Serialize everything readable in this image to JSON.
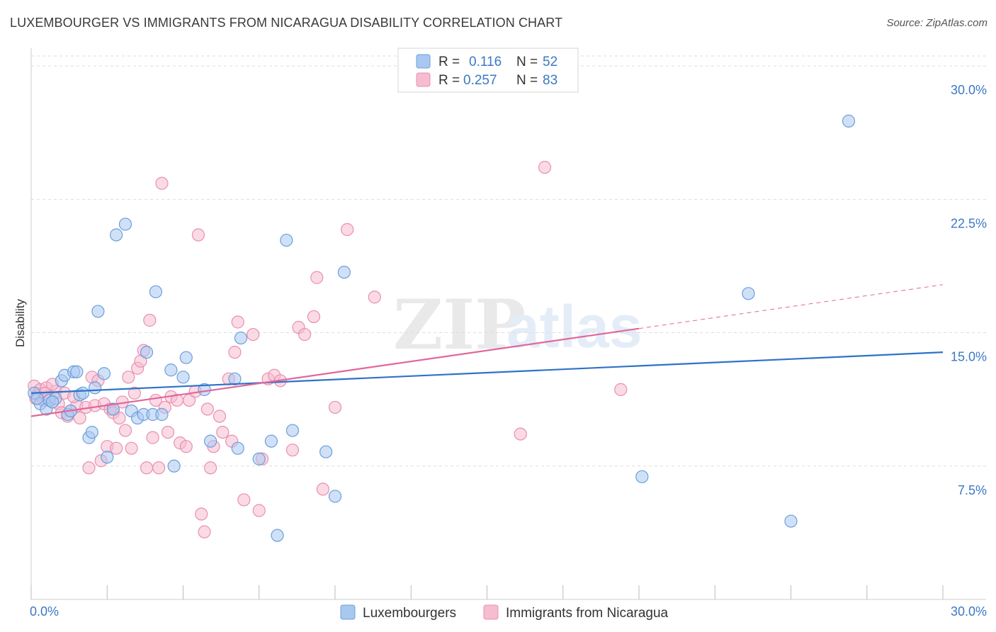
{
  "title": "LUXEMBOURGER VS IMMIGRANTS FROM NICARAGUA DISABILITY CORRELATION CHART",
  "source": "Source: ZipAtlas.com",
  "watermark": {
    "zip": "ZIP",
    "atlas": "atlas"
  },
  "colors": {
    "blue_fill": "#a9c8f0",
    "blue_stroke": "#6a9fdc",
    "blue_line": "#2f72c9",
    "pink_fill": "#f6bcd0",
    "pink_stroke": "#e98fb0",
    "pink_line": "#e0679a",
    "tick_text": "#3b78c4",
    "grid": "#dddddd"
  },
  "legend": {
    "r_label": "R =",
    "n_label": "N =",
    "blue": {
      "r": "0.116",
      "n": "52"
    },
    "pink": {
      "r": "0.257",
      "n": "83"
    }
  },
  "chart_data": {
    "type": "scatter",
    "xlabel": "",
    "ylabel": "Disability",
    "xlim": [
      0,
      30
    ],
    "ylim": [
      0,
      31
    ],
    "x_tick_labels": {
      "left": "0.0%",
      "right": "30.0%"
    },
    "y_ticks": [
      {
        "value": 7.5,
        "label": "7.5%"
      },
      {
        "value": 15.0,
        "label": "15.0%"
      },
      {
        "value": 22.5,
        "label": "22.5%"
      },
      {
        "value": 30.0,
        "label": "30.0%"
      }
    ],
    "series": [
      {
        "name": "Luxembourgers",
        "color": "blue",
        "trend": {
          "x0": 0,
          "y0": 11.6,
          "x1": 30,
          "y1": 13.9,
          "dash_from": null
        },
        "points": [
          [
            0.1,
            11.6
          ],
          [
            0.3,
            11.0
          ],
          [
            0.5,
            10.7
          ],
          [
            0.6,
            11.2
          ],
          [
            0.8,
            11.3
          ],
          [
            1.0,
            12.3
          ],
          [
            1.2,
            10.4
          ],
          [
            1.1,
            12.6
          ],
          [
            1.4,
            12.8
          ],
          [
            1.5,
            12.8
          ],
          [
            1.6,
            11.5
          ],
          [
            1.7,
            11.6
          ],
          [
            1.9,
            9.1
          ],
          [
            2.0,
            9.4
          ],
          [
            2.1,
            11.9
          ],
          [
            2.2,
            16.2
          ],
          [
            2.4,
            12.7
          ],
          [
            2.5,
            8.0
          ],
          [
            2.7,
            10.7
          ],
          [
            2.8,
            20.5
          ],
          [
            3.1,
            21.1
          ],
          [
            3.3,
            10.6
          ],
          [
            3.5,
            10.2
          ],
          [
            3.7,
            10.4
          ],
          [
            3.8,
            13.9
          ],
          [
            4.0,
            10.4
          ],
          [
            4.1,
            17.3
          ],
          [
            4.3,
            10.4
          ],
          [
            4.6,
            12.9
          ],
          [
            4.7,
            7.5
          ],
          [
            5.0,
            12.5
          ],
          [
            5.1,
            13.6
          ],
          [
            5.7,
            11.8
          ],
          [
            5.9,
            8.9
          ],
          [
            6.8,
            8.5
          ],
          [
            6.7,
            12.4
          ],
          [
            6.9,
            14.7
          ],
          [
            7.5,
            7.9
          ],
          [
            7.9,
            8.9
          ],
          [
            8.1,
            3.6
          ],
          [
            8.4,
            20.2
          ],
          [
            8.6,
            9.5
          ],
          [
            9.7,
            8.3
          ],
          [
            10.0,
            5.8
          ],
          [
            10.3,
            18.4
          ],
          [
            20.1,
            6.9
          ],
          [
            23.6,
            17.2
          ],
          [
            25.0,
            4.4
          ],
          [
            26.9,
            26.9
          ],
          [
            0.2,
            11.3
          ],
          [
            0.7,
            11.1
          ],
          [
            1.3,
            10.6
          ]
        ]
      },
      {
        "name": "Immigrants from Nicaragua",
        "color": "pink",
        "trend": {
          "x0": 0,
          "y0": 10.3,
          "x1": 30,
          "y1": 17.7,
          "dash_from": 20.0
        },
        "points": [
          [
            0.1,
            12.0
          ],
          [
            0.2,
            11.5
          ],
          [
            0.3,
            11.8
          ],
          [
            0.4,
            11.2
          ],
          [
            0.5,
            11.9
          ],
          [
            0.6,
            11.4
          ],
          [
            0.8,
            11.7
          ],
          [
            0.9,
            11.0
          ],
          [
            1.0,
            10.5
          ],
          [
            1.1,
            11.6
          ],
          [
            1.2,
            10.3
          ],
          [
            1.3,
            10.6
          ],
          [
            1.5,
            10.9
          ],
          [
            1.6,
            10.2
          ],
          [
            1.8,
            10.8
          ],
          [
            1.9,
            7.4
          ],
          [
            2.0,
            12.5
          ],
          [
            2.1,
            10.9
          ],
          [
            2.2,
            12.3
          ],
          [
            2.3,
            7.8
          ],
          [
            2.4,
            11.0
          ],
          [
            2.5,
            8.6
          ],
          [
            2.6,
            10.7
          ],
          [
            2.7,
            10.5
          ],
          [
            2.8,
            8.5
          ],
          [
            2.9,
            10.2
          ],
          [
            3.0,
            11.1
          ],
          [
            3.1,
            9.5
          ],
          [
            3.2,
            12.5
          ],
          [
            3.3,
            8.5
          ],
          [
            3.4,
            11.6
          ],
          [
            3.5,
            13.0
          ],
          [
            3.6,
            13.4
          ],
          [
            3.7,
            14.0
          ],
          [
            3.8,
            7.4
          ],
          [
            3.9,
            15.7
          ],
          [
            4.0,
            9.1
          ],
          [
            4.1,
            11.2
          ],
          [
            4.2,
            7.4
          ],
          [
            4.3,
            23.4
          ],
          [
            4.4,
            10.8
          ],
          [
            4.5,
            9.4
          ],
          [
            4.6,
            11.4
          ],
          [
            4.8,
            11.2
          ],
          [
            4.9,
            8.8
          ],
          [
            5.1,
            8.6
          ],
          [
            5.2,
            11.2
          ],
          [
            5.4,
            11.7
          ],
          [
            5.5,
            20.5
          ],
          [
            5.6,
            4.8
          ],
          [
            5.7,
            3.8
          ],
          [
            5.8,
            10.7
          ],
          [
            5.9,
            7.4
          ],
          [
            6.0,
            8.6
          ],
          [
            6.2,
            10.3
          ],
          [
            6.3,
            9.4
          ],
          [
            6.5,
            12.4
          ],
          [
            6.6,
            8.9
          ],
          [
            6.7,
            13.9
          ],
          [
            6.8,
            15.6
          ],
          [
            7.0,
            5.6
          ],
          [
            7.3,
            14.9
          ],
          [
            7.5,
            5.0
          ],
          [
            7.6,
            7.9
          ],
          [
            7.8,
            12.4
          ],
          [
            8.0,
            12.6
          ],
          [
            8.2,
            12.3
          ],
          [
            8.6,
            8.4
          ],
          [
            8.8,
            15.3
          ],
          [
            9.0,
            14.9
          ],
          [
            9.3,
            15.9
          ],
          [
            9.4,
            18.1
          ],
          [
            9.6,
            6.2
          ],
          [
            10.0,
            10.8
          ],
          [
            10.4,
            20.8
          ],
          [
            11.3,
            17.0
          ],
          [
            16.1,
            9.3
          ],
          [
            16.9,
            24.3
          ],
          [
            19.4,
            11.8
          ],
          [
            0.15,
            11.3
          ],
          [
            0.45,
            11.6
          ],
          [
            0.7,
            12.1
          ],
          [
            1.4,
            11.4
          ]
        ]
      }
    ]
  },
  "bottom_legend": [
    "Luxembourgers",
    "Immigrants from Nicaragua"
  ]
}
